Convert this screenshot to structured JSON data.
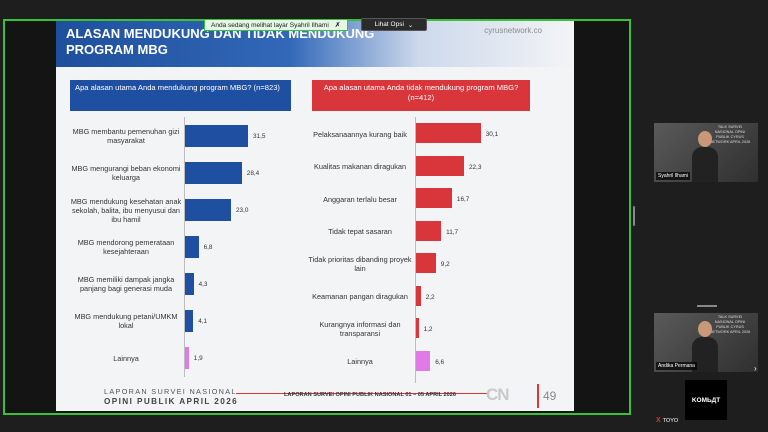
{
  "share": {
    "banner_text": "Anda sedang melihat layar  Syahril Ilhami",
    "options_label": "Lihat Opsi"
  },
  "slide": {
    "title": "ALASAN MENDUKUNG DAN TIDAK MENDUKUNG PROGRAM MBG",
    "site": "cyrusnetwork.co",
    "left_question": "Apa alasan utama Anda mendukung program MBG? (n=823)",
    "right_question": "Apa alasan utama Anda tidak mendukung program MBG? (n=412)",
    "footer_line1": "LAPORAN SURVEI NASIONAL",
    "footer_line2": "OPINI PUBLIK APRIL 2026",
    "footer_center": "LAPORAN SURVEI OPINI PUBLIK NASIONAL 01 – 05 APRIL 2026",
    "footer_logo": "CN",
    "page_number": "49"
  },
  "chart_data": [
    {
      "type": "bar",
      "orientation": "horizontal",
      "title": "Apa alasan utama Anda mendukung program MBG? (n=823)",
      "categories": [
        "MBG membantu pemenuhan gizi masyarakat",
        "MBG mengurangi beban ekonomi keluarga",
        "MBG mendukung kesehatan anak sekolah, balita, ibu menyusui dan ibu hamil",
        "MBG mendorong pemerataan kesejahteraan",
        "MBG memiliki dampak jangka panjang bagi generasi muda",
        "MBG mendukung petani/UMKM lokal",
        "Lainnya"
      ],
      "values": [
        31.5,
        28.4,
        23.0,
        6.8,
        4.3,
        4.1,
        1.9
      ],
      "labels": [
        "31,5",
        "28,4",
        "23,0",
        "6,8",
        "4,3",
        "4,1",
        "1,9"
      ],
      "colors": [
        "#1f4fa0",
        "#1f4fa0",
        "#1f4fa0",
        "#1f4fa0",
        "#1f4fa0",
        "#1f4fa0",
        "#e07ae6"
      ]
    },
    {
      "type": "bar",
      "orientation": "horizontal",
      "title": "Apa alasan utama Anda tidak mendukung program MBG? (n=412)",
      "categories": [
        "Pelaksanaannya kurang baik",
        "Kualitas makanan diragukan",
        "Anggaran terlalu besar",
        "Tidak tepat sasaran",
        "Tidak prioritas dibanding proyek lain",
        "Keamanan pangan diragukan",
        "Kurangnya informasi dan transparansi",
        "Lainnya"
      ],
      "values": [
        30.1,
        22.3,
        16.7,
        11.7,
        9.2,
        2.2,
        1.2,
        6.6
      ],
      "labels": [
        "30,1",
        "22,3",
        "16,7",
        "11,7",
        "9,2",
        "2,2",
        "1,2",
        "6,6"
      ],
      "colors": [
        "#d8363b",
        "#d8363b",
        "#d8363b",
        "#d8363b",
        "#d8363b",
        "#d8363b",
        "#d8363b",
        "#e07ae6"
      ]
    }
  ],
  "participants": {
    "tile1_name": "Syahril Ilhami",
    "tile2_name": "Andika Permana",
    "tile_watermark": "TALK SURVEI NASIONAL OPINI PUBLIK CYRUS NETWORK APRIL 2026",
    "tile3_label": "KOMЬДТ",
    "bottom_label": "TOYO"
  }
}
